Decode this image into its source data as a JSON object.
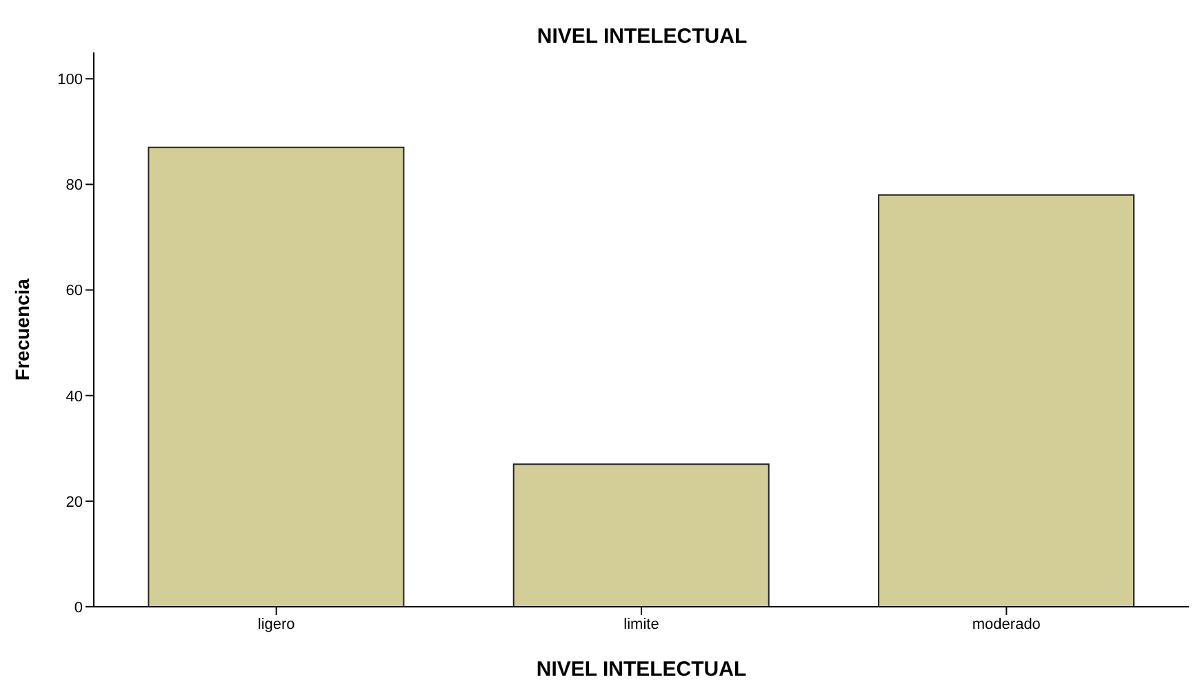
{
  "chart_data": {
    "type": "bar",
    "title": "NIVEL INTELECTUAL",
    "xlabel": "NIVEL INTELECTUAL",
    "ylabel": "Frecuencia",
    "categories": [
      "ligero",
      "limite",
      "moderado"
    ],
    "values": [
      87,
      27,
      78
    ],
    "color": "#d3ce97",
    "ylim": [
      0,
      105
    ],
    "yticks": [
      0,
      20,
      40,
      60,
      80,
      100
    ],
    "grid": false,
    "legend": false
  }
}
